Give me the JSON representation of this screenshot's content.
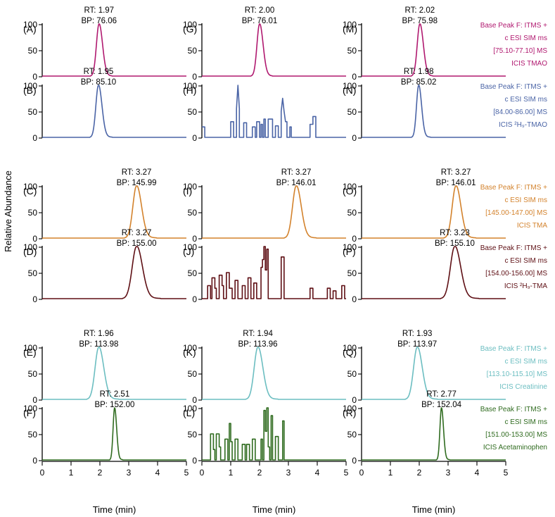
{
  "chart_data": {
    "type": "line",
    "ylabel": "Relative Abundance",
    "xlabel": "Time (min)",
    "xlim": [
      0,
      5
    ],
    "ylim": [
      0,
      100
    ],
    "xticks": [
      "0",
      "1",
      "2",
      "3",
      "4",
      "5"
    ],
    "yticks": [
      "0",
      "50",
      "100"
    ],
    "rows": [
      {
        "color": "#b0186f",
        "legend": [
          "Base Peak F: ITMS +",
          "c ESI SIM ms",
          "[75.10-77.10]  MS",
          "ICIS TMAO"
        ],
        "panels": [
          {
            "label": "(A)",
            "rt_text": "RT: 1.97",
            "bp_text": "BP: 76.06",
            "kind": "peak",
            "rt": 1.97,
            "width": 0.12,
            "tail": 0.1
          },
          {
            "label": "(G)",
            "rt_text": "RT: 2.00",
            "bp_text": "BP: 76.01",
            "kind": "peak",
            "rt": 2.0,
            "width": 0.12,
            "tail": 0.1
          },
          {
            "label": "(M)",
            "rt_text": "RT: 2.02",
            "bp_text": "BP: 75.98",
            "kind": "peak",
            "rt": 2.02,
            "width": 0.12,
            "tail": 0.1
          }
        ]
      },
      {
        "color": "#4a64a6",
        "legend": [
          "Base Peak F: ITMS +",
          "c ESI SIM ms",
          "[84.00-86.00]  MS",
          "ICIS ²H₉-TMAO"
        ],
        "panels": [
          {
            "label": "(B)",
            "rt_text": "RT: 1.95",
            "bp_text": "BP: 85.10",
            "kind": "peak",
            "rt": 1.95,
            "width": 0.12,
            "tail": 0.12
          },
          {
            "label": "(H)",
            "rt_text": "",
            "bp_text": "",
            "kind": "noise",
            "points": [
              [
                0.0,
                20
              ],
              [
                0.1,
                20
              ],
              [
                0.1,
                0
              ],
              [
                1.0,
                0
              ],
              [
                1.0,
                30
              ],
              [
                1.1,
                30
              ],
              [
                1.1,
                0
              ],
              [
                1.2,
                0
              ],
              [
                1.2,
                55
              ],
              [
                1.25,
                100
              ],
              [
                1.3,
                55
              ],
              [
                1.3,
                0
              ],
              [
                1.45,
                0
              ],
              [
                1.45,
                28
              ],
              [
                1.55,
                28
              ],
              [
                1.55,
                0
              ],
              [
                1.75,
                0
              ],
              [
                1.75,
                20
              ],
              [
                1.85,
                20
              ],
              [
                1.85,
                0
              ],
              [
                1.9,
                0
              ],
              [
                1.9,
                30
              ],
              [
                2.0,
                30
              ],
              [
                2.0,
                0
              ],
              [
                2.05,
                0
              ],
              [
                2.05,
                25
              ],
              [
                2.1,
                25
              ],
              [
                2.1,
                0
              ],
              [
                2.15,
                0
              ],
              [
                2.15,
                35
              ],
              [
                2.2,
                35
              ],
              [
                2.2,
                0
              ],
              [
                2.3,
                0
              ],
              [
                2.3,
                35
              ],
              [
                2.45,
                35
              ],
              [
                2.45,
                0
              ],
              [
                2.55,
                0
              ],
              [
                2.55,
                22
              ],
              [
                2.65,
                22
              ],
              [
                2.65,
                0
              ],
              [
                2.75,
                0
              ],
              [
                2.75,
                50
              ],
              [
                2.8,
                75
              ],
              [
                2.85,
                50
              ],
              [
                2.9,
                30
              ],
              [
                2.95,
                30
              ],
              [
                2.95,
                0
              ],
              [
                3.05,
                0
              ],
              [
                3.05,
                20
              ],
              [
                3.1,
                20
              ],
              [
                3.1,
                0
              ],
              [
                3.75,
                0
              ],
              [
                3.75,
                25
              ],
              [
                3.85,
                25
              ],
              [
                3.85,
                40
              ],
              [
                3.95,
                40
              ],
              [
                3.95,
                0
              ],
              [
                5.0,
                0
              ]
            ]
          },
          {
            "label": "(N)",
            "rt_text": "RT: 1.98",
            "bp_text": "BP: 85.02",
            "kind": "peak",
            "rt": 1.98,
            "width": 0.1,
            "tail": 0.1
          }
        ]
      },
      {
        "color": "#d3822c",
        "legend": [
          "Base Peak F: ITMS +",
          "c ESI SIM ms",
          "[145.00-147.00]  MS",
          "ICIS TMA"
        ],
        "panels": [
          {
            "label": "(C)",
            "rt_text": "RT: 3.27",
            "bp_text": "BP: 145.99",
            "kind": "peak",
            "rt": 3.27,
            "width": 0.17,
            "tail": 0.2
          },
          {
            "label": "(I)",
            "rt_text": "RT: 3.27",
            "bp_text": "BP: 146.01",
            "kind": "peak",
            "rt": 3.27,
            "width": 0.17,
            "tail": 0.2
          },
          {
            "label": "(O)",
            "rt_text": "RT: 3.27",
            "bp_text": "BP: 146.01",
            "kind": "peak",
            "rt": 3.27,
            "width": 0.17,
            "tail": 0.2
          }
        ]
      },
      {
        "color": "#5e0f14",
        "legend": [
          "Base Peak F: ITMS +",
          "c ESI SIM ms",
          "[154.00-156.00]  MS",
          "ICIS ²H₉-TMA"
        ],
        "panels": [
          {
            "label": "(D)",
            "rt_text": "RT: 3.27",
            "bp_text": "BP: 155.00",
            "kind": "peak",
            "rt": 3.27,
            "width": 0.2,
            "tail": 0.25
          },
          {
            "label": "(J)",
            "rt_text": "",
            "bp_text": "",
            "kind": "noise",
            "points": [
              [
                0.0,
                0
              ],
              [
                0.2,
                0
              ],
              [
                0.2,
                25
              ],
              [
                0.3,
                25
              ],
              [
                0.3,
                0
              ],
              [
                0.35,
                0
              ],
              [
                0.35,
                40
              ],
              [
                0.45,
                40
              ],
              [
                0.45,
                20
              ],
              [
                0.5,
                20
              ],
              [
                0.5,
                0
              ],
              [
                0.6,
                0
              ],
              [
                0.6,
                45
              ],
              [
                0.7,
                45
              ],
              [
                0.7,
                25
              ],
              [
                0.75,
                25
              ],
              [
                0.75,
                0
              ],
              [
                0.85,
                0
              ],
              [
                0.85,
                50
              ],
              [
                0.95,
                50
              ],
              [
                0.95,
                20
              ],
              [
                1.05,
                20
              ],
              [
                1.05,
                0
              ],
              [
                1.15,
                0
              ],
              [
                1.15,
                35
              ],
              [
                1.25,
                35
              ],
              [
                1.25,
                0
              ],
              [
                1.4,
                0
              ],
              [
                1.4,
                25
              ],
              [
                1.5,
                25
              ],
              [
                1.5,
                0
              ],
              [
                1.6,
                0
              ],
              [
                1.6,
                40
              ],
              [
                1.7,
                40
              ],
              [
                1.7,
                0
              ],
              [
                1.8,
                0
              ],
              [
                1.8,
                30
              ],
              [
                1.9,
                30
              ],
              [
                1.9,
                0
              ],
              [
                2.05,
                0
              ],
              [
                2.05,
                60
              ],
              [
                2.1,
                60
              ],
              [
                2.1,
                75
              ],
              [
                2.15,
                75
              ],
              [
                2.15,
                100
              ],
              [
                2.2,
                100
              ],
              [
                2.2,
                55
              ],
              [
                2.25,
                55
              ],
              [
                2.25,
                95
              ],
              [
                2.3,
                95
              ],
              [
                2.3,
                0
              ],
              [
                2.75,
                0
              ],
              [
                2.75,
                80
              ],
              [
                2.85,
                80
              ],
              [
                2.85,
                0
              ],
              [
                3.75,
                0
              ],
              [
                3.75,
                20
              ],
              [
                3.85,
                20
              ],
              [
                3.85,
                0
              ],
              [
                4.35,
                0
              ],
              [
                4.35,
                20
              ],
              [
                4.45,
                20
              ],
              [
                4.45,
                0
              ],
              [
                4.55,
                0
              ],
              [
                4.55,
                15
              ],
              [
                4.65,
                15
              ],
              [
                4.65,
                0
              ],
              [
                4.85,
                0
              ],
              [
                4.85,
                25
              ],
              [
                4.95,
                25
              ],
              [
                4.95,
                0
              ],
              [
                5.0,
                0
              ]
            ]
          },
          {
            "label": "(P)",
            "rt_text": "RT: 3.23",
            "bp_text": "BP: 155.10",
            "kind": "peak",
            "rt": 3.23,
            "width": 0.2,
            "tail": 0.25
          }
        ]
      },
      {
        "color": "#6cbec1",
        "legend": [
          "Base Peak F: ITMS +",
          "c ESI SIM ms",
          "[113.10-115.10]  MS",
          "ICIS Creatinine"
        ],
        "panels": [
          {
            "label": "(E)",
            "rt_text": "RT: 1.96",
            "bp_text": "BP: 113.98",
            "kind": "peak",
            "rt": 1.96,
            "width": 0.17,
            "tail": 0.2
          },
          {
            "label": "(K)",
            "rt_text": "RT: 1.94",
            "bp_text": "BP: 113.96",
            "kind": "peak",
            "rt": 1.94,
            "width": 0.17,
            "tail": 0.2
          },
          {
            "label": "(Q)",
            "rt_text": "RT: 1.93",
            "bp_text": "BP: 113.97",
            "kind": "peak",
            "rt": 1.93,
            "width": 0.17,
            "tail": 0.2
          }
        ]
      },
      {
        "color": "#2f6b1f",
        "legend": [
          "Base Peak F: ITMS +",
          "c ESI SIM ms",
          "[151.00-153.00]  MS",
          "ICIS Acetaminophen"
        ],
        "panels": [
          {
            "label": "(F)",
            "rt_text": "RT: 2.51",
            "bp_text": "BP: 152.00",
            "kind": "peak",
            "rt": 2.51,
            "width": 0.07,
            "tail": 0.06
          },
          {
            "label": "(L)",
            "rt_text": "",
            "bp_text": "",
            "kind": "noise",
            "points": [
              [
                0.0,
                0
              ],
              [
                0.3,
                0
              ],
              [
                0.3,
                50
              ],
              [
                0.4,
                50
              ],
              [
                0.4,
                20
              ],
              [
                0.45,
                20
              ],
              [
                0.45,
                0
              ],
              [
                0.5,
                0
              ],
              [
                0.5,
                50
              ],
              [
                0.6,
                50
              ],
              [
                0.6,
                25
              ],
              [
                0.65,
                25
              ],
              [
                0.65,
                0
              ],
              [
                0.8,
                0
              ],
              [
                0.8,
                40
              ],
              [
                0.9,
                40
              ],
              [
                0.9,
                0
              ],
              [
                0.95,
                0
              ],
              [
                0.95,
                70
              ],
              [
                1.0,
                70
              ],
              [
                1.0,
                35
              ],
              [
                1.05,
                35
              ],
              [
                1.05,
                0
              ],
              [
                1.15,
                0
              ],
              [
                1.15,
                40
              ],
              [
                1.25,
                40
              ],
              [
                1.25,
                0
              ],
              [
                1.4,
                0
              ],
              [
                1.4,
                30
              ],
              [
                1.5,
                30
              ],
              [
                1.5,
                0
              ],
              [
                1.55,
                0
              ],
              [
                1.55,
                30
              ],
              [
                1.65,
                30
              ],
              [
                1.65,
                0
              ],
              [
                1.75,
                0
              ],
              [
                1.75,
                40
              ],
              [
                1.85,
                40
              ],
              [
                1.85,
                0
              ],
              [
                2.05,
                0
              ],
              [
                2.05,
                40
              ],
              [
                2.1,
                40
              ],
              [
                2.1,
                0
              ],
              [
                2.15,
                0
              ],
              [
                2.15,
                95
              ],
              [
                2.2,
                95
              ],
              [
                2.2,
                55
              ],
              [
                2.25,
                55
              ],
              [
                2.25,
                100
              ],
              [
                2.3,
                100
              ],
              [
                2.3,
                25
              ],
              [
                2.35,
                25
              ],
              [
                2.35,
                0
              ],
              [
                2.4,
                0
              ],
              [
                2.4,
                85
              ],
              [
                2.45,
                85
              ],
              [
                2.45,
                0
              ],
              [
                2.55,
                0
              ],
              [
                2.55,
                45
              ],
              [
                2.65,
                45
              ],
              [
                2.65,
                0
              ],
              [
                2.8,
                0
              ],
              [
                2.8,
                75
              ],
              [
                2.85,
                75
              ],
              [
                2.85,
                0
              ],
              [
                5.0,
                0
              ]
            ]
          },
          {
            "label": "(R)",
            "rt_text": "RT: 2.77",
            "bp_text": "BP: 152.04",
            "kind": "peak",
            "rt": 2.77,
            "width": 0.07,
            "tail": 0.06
          }
        ]
      }
    ]
  }
}
